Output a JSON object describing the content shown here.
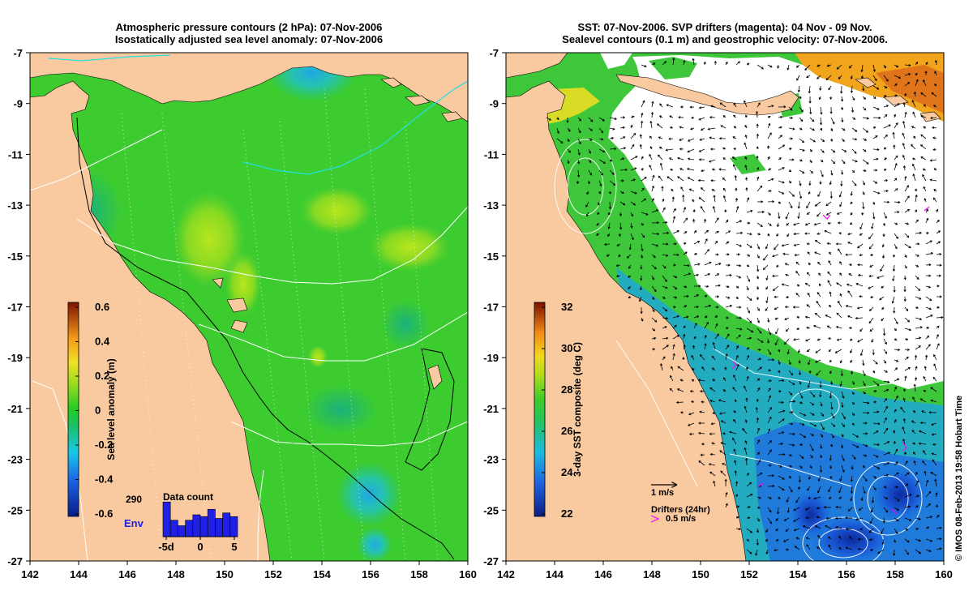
{
  "left_panel": {
    "title_line1": "Atmospheric pressure contours (2 hPa): 07-Nov-2006",
    "title_line2": "Isostatically adjusted sea level anomaly: 07-Nov-2006",
    "x_ticks": [
      "142",
      "144",
      "146",
      "148",
      "150",
      "152",
      "154",
      "156",
      "158",
      "160"
    ],
    "y_ticks": [
      "-7",
      "-9",
      "-11",
      "-13",
      "-15",
      "-17",
      "-19",
      "-21",
      "-23",
      "-25",
      "-27"
    ],
    "colorbar": {
      "label": "Sea level anomaly (m)",
      "ticks": [
        "0.6",
        "0.4",
        "0.2",
        "0",
        "-0.2",
        "-0.4",
        "-0.6"
      ]
    },
    "inset": {
      "count": "290",
      "title": "Data count",
      "label": "Env",
      "x_ticks": [
        "-5d",
        "0",
        "5"
      ],
      "bar_values": [
        0.95,
        0.45,
        0.3,
        0.45,
        0.6,
        0.55,
        0.75,
        0.5,
        0.65,
        0.55
      ],
      "bar_color": "#1f1fe6"
    }
  },
  "right_panel": {
    "title_line1": "SST: 07-Nov-2006. SVP drifters (magenta): 04 Nov - 09 Nov.",
    "title_line2": "Sealevel contours (0.1 m) and geostrophic velocity: 07-Nov-2006.",
    "x_ticks": [
      "142",
      "144",
      "146",
      "148",
      "150",
      "152",
      "154",
      "156",
      "158",
      "160"
    ],
    "y_ticks": [
      "-7",
      "-9",
      "-11",
      "-13",
      "-15",
      "-17",
      "-19",
      "-21",
      "-23",
      "-25",
      "-27"
    ],
    "colorbar": {
      "label": "3-day SST composite (deg C)",
      "ticks": [
        "32",
        "30",
        "28",
        "26",
        "24",
        "22"
      ]
    },
    "velocity_key": "1 m/s",
    "drifter_key_title": "Drifters (24hr)",
    "drifter_key_speed": "0.5 m/s",
    "drifter_color": "#ff00ff"
  },
  "credit": "© IMOS 08-Feb-2013 19:58 Hobart Time",
  "colors": {
    "land": "#f9c9a0",
    "sea_green": "#33cc33",
    "cloud": "#ffffff"
  }
}
